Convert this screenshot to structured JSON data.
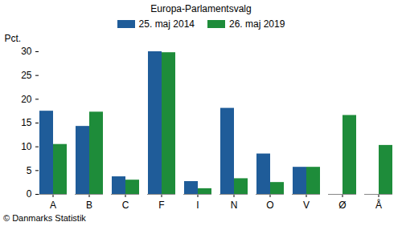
{
  "chart_data": {
    "type": "bar",
    "title": "Europa-Parlamentsvalg",
    "y_label": "Pct.",
    "caption": "© Danmarks Statistik",
    "categories": [
      "A",
      "B",
      "C",
      "F",
      "I",
      "N",
      "O",
      "V",
      "Ø",
      "Å"
    ],
    "series": [
      {
        "name": "25. maj 2014",
        "color": "#1f5c99",
        "values": [
          17.5,
          14.3,
          3.7,
          30.0,
          2.7,
          18.1,
          8.5,
          5.7,
          null,
          null
        ]
      },
      {
        "name": "26. maj 2019",
        "color": "#1e8c3a",
        "values": [
          10.5,
          17.3,
          3.0,
          29.8,
          1.2,
          3.3,
          2.5,
          5.7,
          16.6,
          10.3
        ]
      }
    ],
    "ylim": [
      0,
      30
    ],
    "yticks": [
      0,
      5,
      10,
      15,
      20,
      25,
      30
    ],
    "grid": false,
    "legend": "top"
  }
}
